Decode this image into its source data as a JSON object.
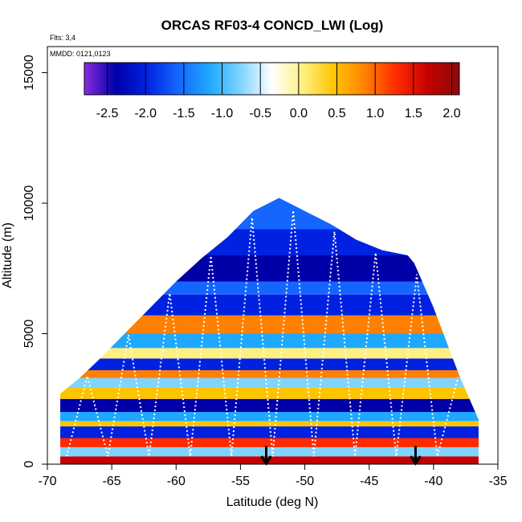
{
  "chart_data": {
    "type": "heatmap",
    "title": "ORCAS RF03-4 CONCD_LWI (Log)",
    "xlabel": "Latitude (deg N)",
    "ylabel": "Altitude (m)",
    "xlim": [
      -70,
      -35
    ],
    "ylim": [
      0,
      16000
    ],
    "x_ticks": [
      -70,
      -65,
      -60,
      -55,
      -50,
      -45,
      -40,
      -35
    ],
    "x_tick_labels": [
      "-70",
      "-65",
      "-60",
      "-55",
      "-50",
      "-45",
      "-40",
      "-35"
    ],
    "y_ticks": [
      0,
      5000,
      10000,
      15000
    ],
    "y_tick_labels": [
      "0",
      "5000",
      "10000",
      "15000"
    ],
    "annotations": {
      "flights": "Flts: 3,4",
      "dates": "MMDD: 0121,0123"
    },
    "colorbar": {
      "min": -2.8,
      "max": 2.1,
      "ticks": [
        -2.5,
        -2.0,
        -1.5,
        -1.0,
        -0.5,
        0.0,
        0.5,
        1.0,
        1.5,
        2.0
      ],
      "tick_labels": [
        "-2.5",
        "-2.0",
        "-1.5",
        "-1.0",
        "-0.5",
        "0.0",
        "0.5",
        "1.0",
        "1.5",
        "2.0"
      ],
      "colors": [
        "#8a2be2",
        "#0000a8",
        "#0022e0",
        "#1565ff",
        "#1fa8ff",
        "#7fd4ff",
        "#ffffff",
        "#ffef80",
        "#ffc400",
        "#ff7f00",
        "#ff2a00",
        "#c40000",
        "#8b0a0a"
      ]
    },
    "envelope": {
      "lat": [
        -69,
        -67.5,
        -66,
        -64,
        -62,
        -60,
        -58,
        -56,
        -54,
        -52,
        -50,
        -48,
        -46,
        -44,
        -42,
        -41.5,
        -40,
        -38,
        -36.5
      ],
      "alt_top": [
        2700,
        3300,
        4000,
        5000,
        6000,
        7000,
        7900,
        8700,
        9700,
        10200,
        9700,
        9200,
        8600,
        8200,
        8000,
        7700,
        6000,
        3400,
        1700
      ]
    },
    "bands": [
      {
        "alt_low": 0,
        "alt_high": 300,
        "value": 1.6
      },
      {
        "alt_low": 300,
        "alt_high": 650,
        "value": -0.9
      },
      {
        "alt_low": 650,
        "alt_high": 1000,
        "value": 1.1
      },
      {
        "alt_low": 1000,
        "alt_high": 1450,
        "value": -2.0
      },
      {
        "alt_low": 1450,
        "alt_high": 1650,
        "value": 0.4
      },
      {
        "alt_low": 1650,
        "alt_high": 2000,
        "value": -1.3
      },
      {
        "alt_low": 2000,
        "alt_high": 2500,
        "value": -2.4
      },
      {
        "alt_low": 2500,
        "alt_high": 2950,
        "value": 0.6
      },
      {
        "alt_low": 2950,
        "alt_high": 3300,
        "value": -0.6
      },
      {
        "alt_low": 3300,
        "alt_high": 3600,
        "value": 0.9
      },
      {
        "alt_low": 3600,
        "alt_high": 4050,
        "value": -1.8
      },
      {
        "alt_low": 4050,
        "alt_high": 4450,
        "value": 0.2
      },
      {
        "alt_low": 4450,
        "alt_high": 5000,
        "value": -1.0
      },
      {
        "alt_low": 5000,
        "alt_high": 5700,
        "value": 1.0
      },
      {
        "alt_low": 5700,
        "alt_high": 6500,
        "value": -2.1
      },
      {
        "alt_low": 6500,
        "alt_high": 7000,
        "value": -1.5
      },
      {
        "alt_low": 7000,
        "alt_high": 8000,
        "value": -2.4
      },
      {
        "alt_low": 8000,
        "alt_high": 9000,
        "value": -2.0
      },
      {
        "alt_low": 9000,
        "alt_high": 10300,
        "value": -1.6
      }
    ],
    "arrows": [
      {
        "lat": -53.0,
        "alt_from": 700,
        "alt_to": 0
      },
      {
        "lat": -41.4,
        "alt_from": 700,
        "alt_to": 0
      }
    ]
  }
}
